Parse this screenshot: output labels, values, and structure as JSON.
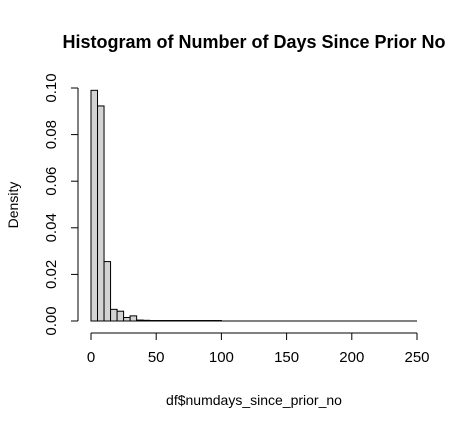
{
  "chart_data": {
    "type": "bar",
    "title": "Histogram of Number of Days Since Prior No",
    "xlabel": "df$numdays_since_prior_no",
    "ylabel": "Density",
    "xlim": [
      0,
      250
    ],
    "ylim": [
      0,
      0.1
    ],
    "grid": false,
    "x_ticks": [
      "0",
      "50",
      "100",
      "150",
      "200",
      "250"
    ],
    "y_ticks": [
      "0.00",
      "0.02",
      "0.04",
      "0.06",
      "0.08",
      "0.10"
    ],
    "bin_width": 5,
    "bins": [
      {
        "x0": 0,
        "x1": 5,
        "density": 0.099
      },
      {
        "x0": 5,
        "x1": 10,
        "density": 0.0923
      },
      {
        "x0": 10,
        "x1": 15,
        "density": 0.0255
      },
      {
        "x0": 15,
        "x1": 20,
        "density": 0.005
      },
      {
        "x0": 20,
        "x1": 25,
        "density": 0.0042
      },
      {
        "x0": 25,
        "x1": 30,
        "density": 0.0015
      },
      {
        "x0": 30,
        "x1": 35,
        "density": 0.0022
      },
      {
        "x0": 35,
        "x1": 40,
        "density": 0.0004
      },
      {
        "x0": 40,
        "x1": 45,
        "density": 0.0003
      },
      {
        "x0": 45,
        "x1": 50,
        "density": 0.0002
      },
      {
        "x0": 50,
        "x1": 55,
        "density": 0.0002
      },
      {
        "x0": 55,
        "x1": 60,
        "density": 0.0002
      },
      {
        "x0": 60,
        "x1": 65,
        "density": 0.0002
      },
      {
        "x0": 65,
        "x1": 70,
        "density": 0.0002
      },
      {
        "x0": 70,
        "x1": 75,
        "density": 0.0002
      },
      {
        "x0": 75,
        "x1": 80,
        "density": 0.0002
      },
      {
        "x0": 80,
        "x1": 85,
        "density": 0.0002
      },
      {
        "x0": 85,
        "x1": 90,
        "density": 0.0002
      },
      {
        "x0": 90,
        "x1": 95,
        "density": 0.0002
      },
      {
        "x0": 95,
        "x1": 100,
        "density": 0.0002
      }
    ]
  }
}
